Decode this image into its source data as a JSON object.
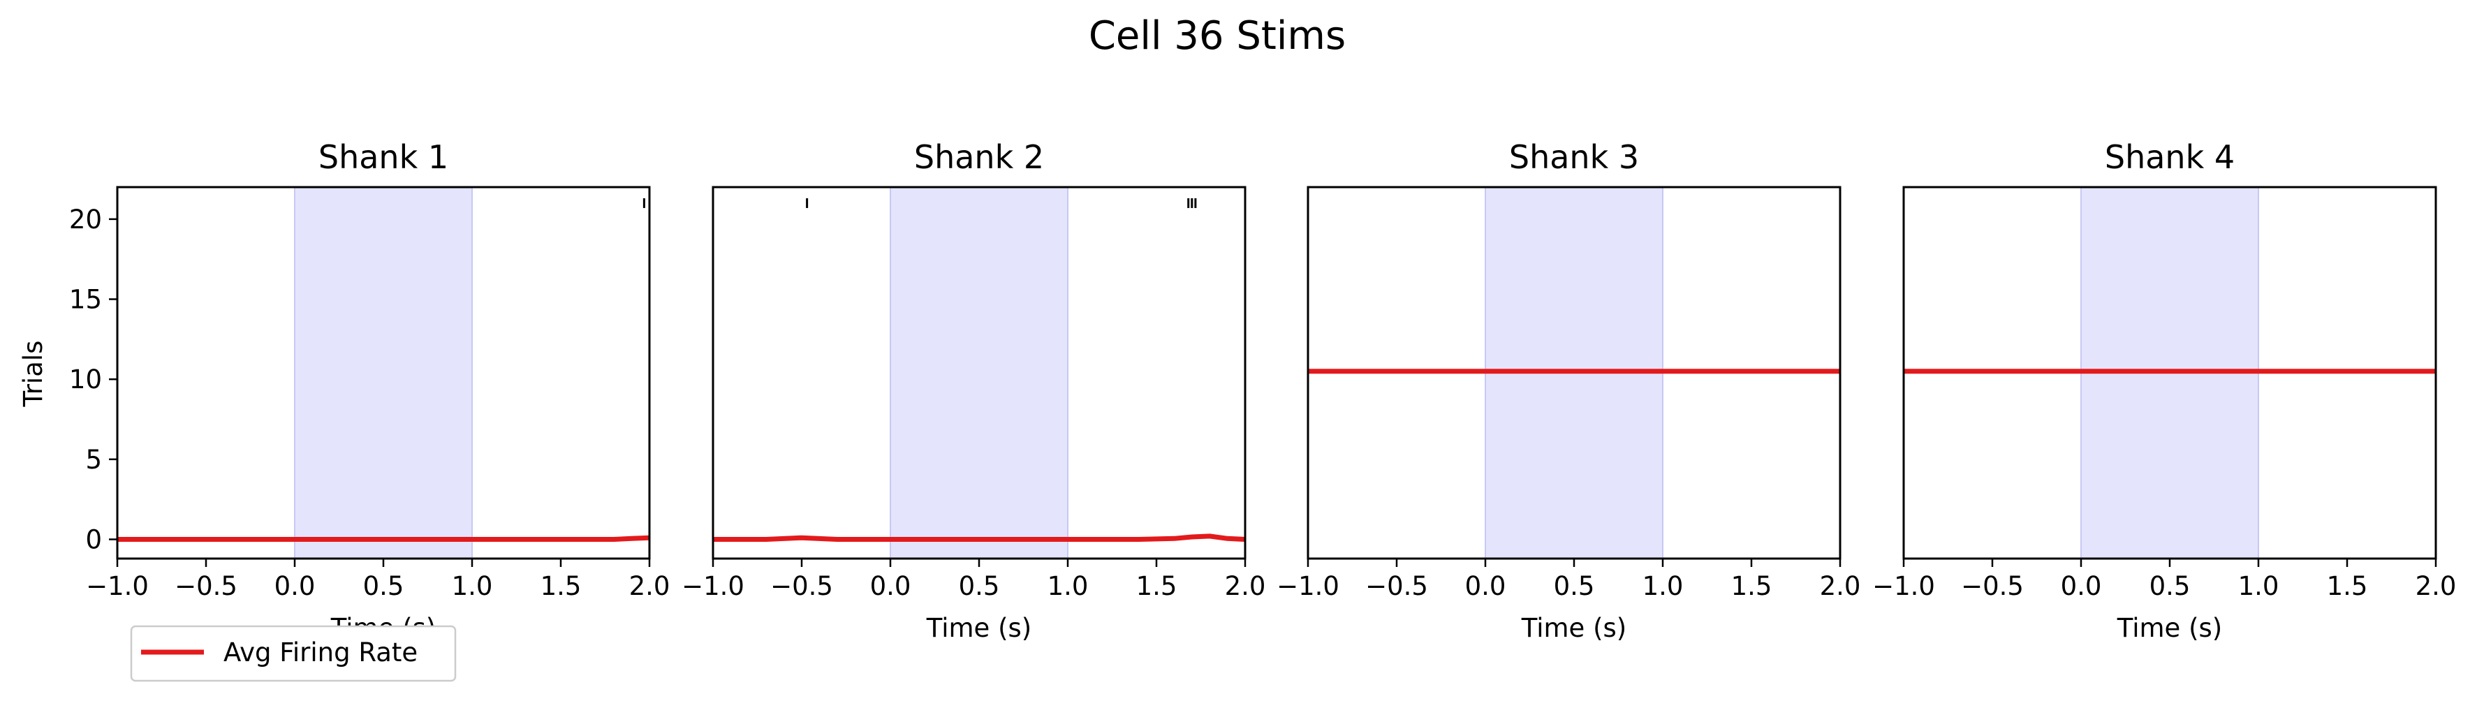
{
  "figure": {
    "title": "Cell 36 Stims",
    "ylabel": "Trials",
    "legend": {
      "label": "Avg Firing Rate",
      "color": "#e31a1c",
      "placement": "lower-left"
    }
  },
  "chart_data": [
    {
      "type": "line",
      "title": "Shank 1",
      "xlabel": "Time (s)",
      "xlim": [
        -1.0,
        2.0
      ],
      "ylim": [
        -1.2,
        22.0
      ],
      "xticks": [
        "−1.0",
        "−0.5",
        "0.0",
        "0.5",
        "1.0",
        "1.5",
        "2.0"
      ],
      "yticks": [
        "0",
        "5",
        "10",
        "15",
        "20"
      ],
      "stim_window": [
        0.0,
        1.0
      ],
      "spikes": [
        {
          "trial": 21,
          "times": [
            1.97
          ]
        }
      ],
      "series": [
        {
          "name": "Avg Firing Rate",
          "x": [
            -1.0,
            1.8,
            1.9,
            2.0
          ],
          "y": [
            0.0,
            0.0,
            0.05,
            0.1
          ]
        }
      ]
    },
    {
      "type": "line",
      "title": "Shank 2",
      "xlabel": "Time (s)",
      "xlim": [
        -1.0,
        2.0
      ],
      "ylim": [
        -1.2,
        22.0
      ],
      "xticks": [
        "−1.0",
        "−0.5",
        "0.0",
        "0.5",
        "1.0",
        "1.5",
        "2.0"
      ],
      "yticks": [],
      "stim_window": [
        0.0,
        1.0
      ],
      "spikes": [
        {
          "trial": 21,
          "times": [
            -0.47,
            1.68,
            1.7,
            1.72
          ]
        }
      ],
      "series": [
        {
          "name": "Avg Firing Rate",
          "x": [
            -1.0,
            -0.7,
            -0.5,
            -0.3,
            1.4,
            1.6,
            1.7,
            1.8,
            1.9,
            2.0
          ],
          "y": [
            0.0,
            0.0,
            0.1,
            0.0,
            0.0,
            0.05,
            0.15,
            0.2,
            0.05,
            0.0
          ]
        }
      ]
    },
    {
      "type": "line",
      "title": "Shank 3",
      "xlabel": "Time (s)",
      "xlim": [
        -1.0,
        2.0
      ],
      "ylim": [
        -1.2,
        22.0
      ],
      "xticks": [
        "−1.0",
        "−0.5",
        "0.0",
        "0.5",
        "1.0",
        "1.5",
        "2.0"
      ],
      "yticks": [],
      "stim_window": [
        0.0,
        1.0
      ],
      "spikes": [],
      "series": [
        {
          "name": "Avg Firing Rate",
          "x": [
            -1.0,
            2.0
          ],
          "y": [
            10.5,
            10.5
          ]
        }
      ]
    },
    {
      "type": "line",
      "title": "Shank 4",
      "xlabel": "Time (s)",
      "xlim": [
        -1.0,
        2.0
      ],
      "ylim": [
        -1.2,
        22.0
      ],
      "xticks": [
        "−1.0",
        "−0.5",
        "0.0",
        "0.5",
        "1.0",
        "1.5",
        "2.0"
      ],
      "yticks": [],
      "stim_window": [
        0.0,
        1.0
      ],
      "spikes": [],
      "series": [
        {
          "name": "Avg Firing Rate",
          "x": [
            -1.0,
            2.0
          ],
          "y": [
            10.5,
            10.5
          ]
        }
      ]
    }
  ]
}
